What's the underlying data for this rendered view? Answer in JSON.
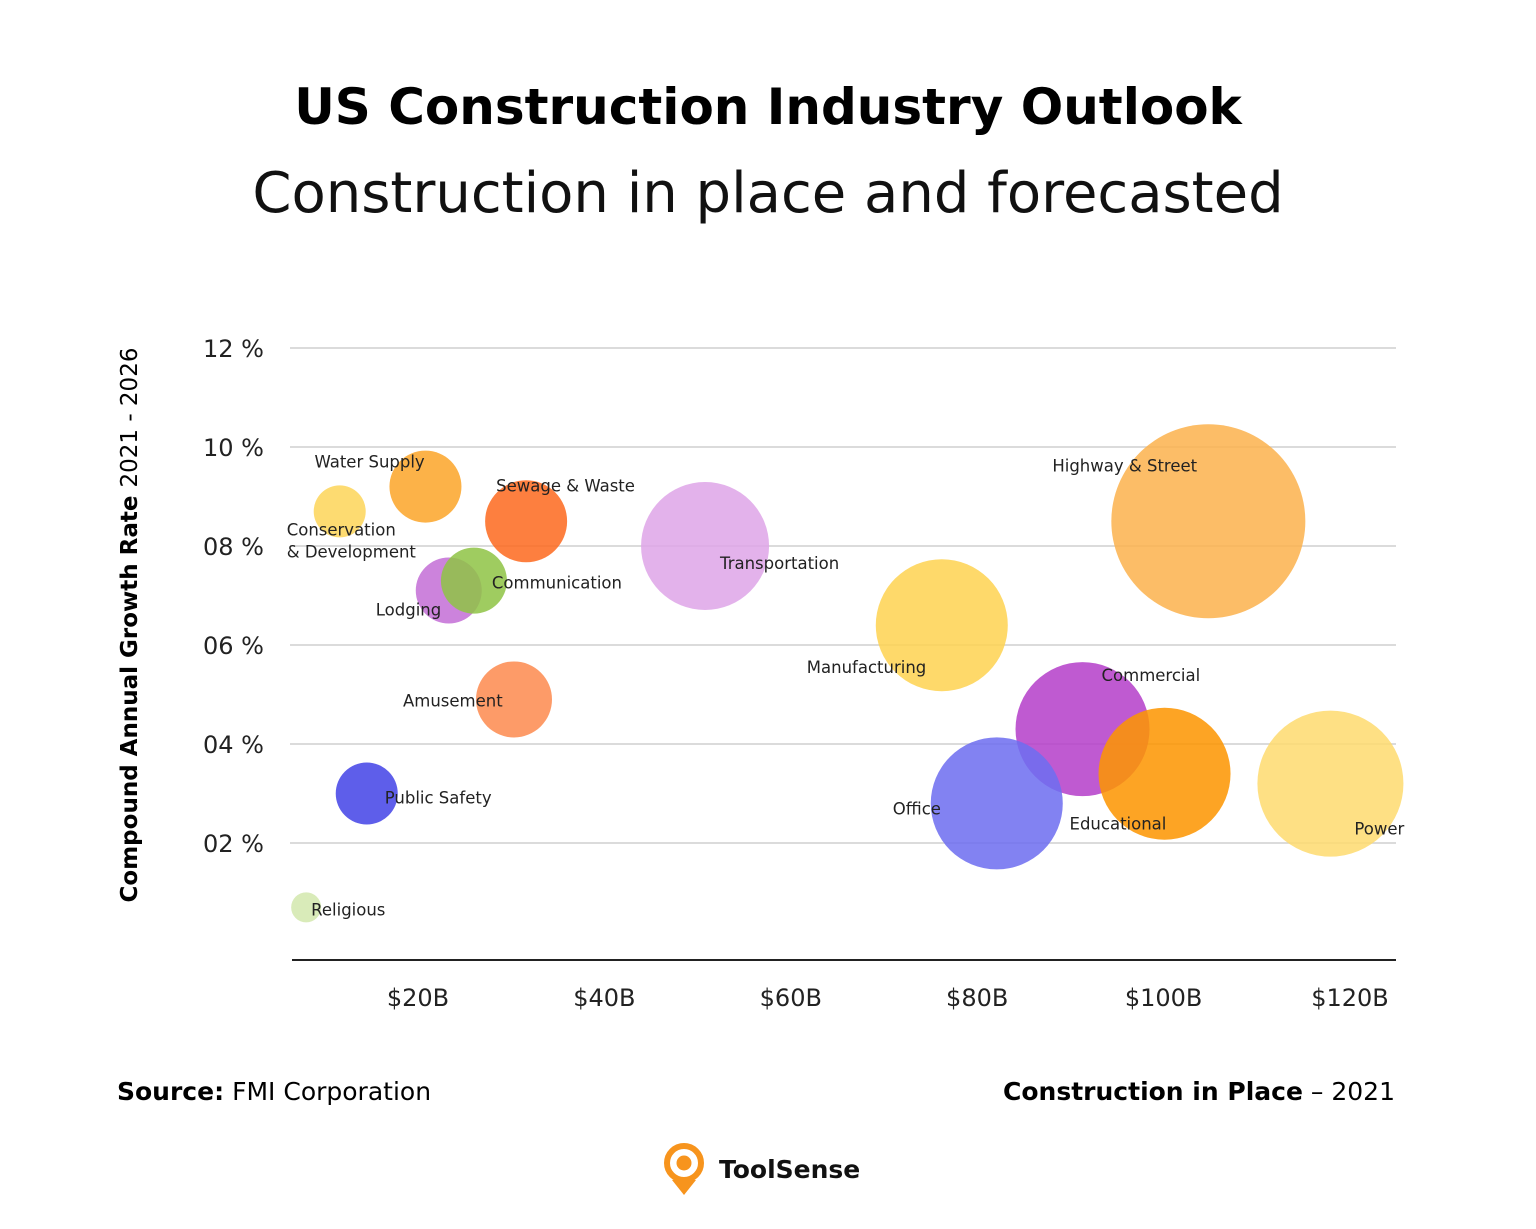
{
  "title": "US Construction Industry Outlook",
  "subtitle": "Construction in place and forecasted",
  "source": {
    "label": "Source:",
    "value": "FMI Corporation"
  },
  "xcaption": {
    "label": "Construction in Place",
    "value": "– 2021"
  },
  "logo": {
    "text": "ToolSense",
    "color": "#f7941d",
    "icon": "location-pin-icon"
  },
  "chart_data": {
    "type": "scatter",
    "subtype": "bubble",
    "ylabel_bold": "Compound Annual Growth Rate",
    "ylabel_rest": "2021 - 2026",
    "xlabel": "Construction in Place – 2021",
    "xlim": [
      0,
      124
    ],
    "ylim": [
      -0.4,
      12.5
    ],
    "x_ticks": [
      20,
      40,
      60,
      80,
      100,
      120
    ],
    "x_tick_labels": [
      "$20B",
      "$40B",
      "$60B",
      "$80B",
      "$100B",
      "$120B"
    ],
    "y_ticks": [
      2,
      4,
      6,
      8,
      10,
      12
    ],
    "y_tick_labels": [
      "02 %",
      "04 %",
      "06 %",
      "08 %",
      "10 %",
      "12 %"
    ],
    "grid": "horizontal",
    "points": [
      {
        "label": "Religious",
        "x": 8.0,
        "y": 0.7,
        "size": 15,
        "color": "#d3e8ae"
      },
      {
        "label": "Conservation\n& Development",
        "x": 11.6,
        "y": 8.7,
        "size": 26,
        "color": "#fdd55a"
      },
      {
        "label": "Water Supply",
        "x": 20.8,
        "y": 9.2,
        "size": 36,
        "color": "#fba52a"
      },
      {
        "label": "Sewage & Waste",
        "x": 31.6,
        "y": 8.5,
        "size": 41,
        "color": "#fd6a1f"
      },
      {
        "label": "Lodging",
        "x": 23.3,
        "y": 7.1,
        "size": 33,
        "color": "#c46fd6"
      },
      {
        "label": "Communication",
        "x": 26.0,
        "y": 7.3,
        "size": 33,
        "color": "#8fc446"
      },
      {
        "label": "Transportation",
        "x": 50.8,
        "y": 8.0,
        "size": 64,
        "color": "#dea5e8"
      },
      {
        "label": "Amusement",
        "x": 30.3,
        "y": 4.9,
        "size": 38,
        "color": "#fd8a4f"
      },
      {
        "label": "Public Safety",
        "x": 14.5,
        "y": 3.0,
        "size": 31,
        "color": "#4343e6"
      },
      {
        "label": "Manufacturing",
        "x": 76.2,
        "y": 6.4,
        "size": 66,
        "color": "#fed352"
      },
      {
        "label": "Highway & Street",
        "x": 104.8,
        "y": 8.5,
        "size": 97,
        "color": "#fbb24e"
      },
      {
        "label": "Commercial",
        "x": 91.3,
        "y": 4.3,
        "size": 67,
        "color": "#b53fc9"
      },
      {
        "label": "Office",
        "x": 82.1,
        "y": 2.8,
        "size": 66,
        "color": "#6e6ef0"
      },
      {
        "label": "Educational",
        "x": 100.1,
        "y": 3.4,
        "size": 66,
        "color": "#fd9500"
      },
      {
        "label": "Power",
        "x": 117.9,
        "y": 3.2,
        "size": 73,
        "color": "#fedb70"
      }
    ]
  }
}
